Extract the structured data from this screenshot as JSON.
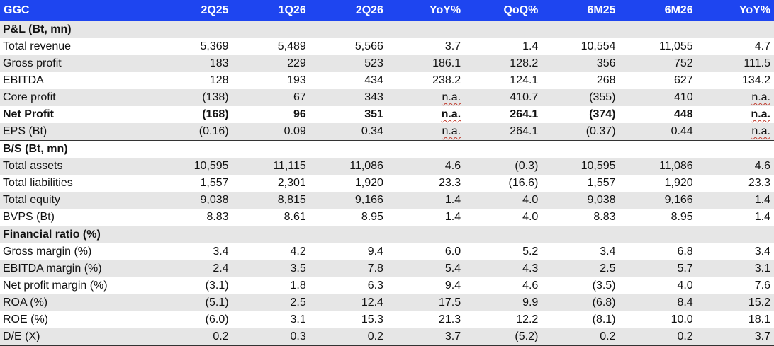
{
  "header": [
    "GGC",
    "2Q25",
    "1Q26",
    "2Q26",
    "YoY%",
    "QoQ%",
    "6M25",
    "6M26",
    "YoY%"
  ],
  "sections": [
    {
      "title": "P&L (Bt, mn)",
      "rows": [
        {
          "label": "Total revenue",
          "values": [
            "5,369",
            "5,489",
            "5,566",
            "3.7",
            "1.4",
            "10,554",
            "11,055",
            "4.7"
          ]
        },
        {
          "label": "Gross profit",
          "values": [
            "183",
            "229",
            "523",
            "186.1",
            "128.2",
            "356",
            "752",
            "111.5"
          ]
        },
        {
          "label": "EBITDA",
          "values": [
            "128",
            "193",
            "434",
            "238.2",
            "124.1",
            "268",
            "627",
            "134.2"
          ]
        },
        {
          "label": "Core profit",
          "values": [
            "(138)",
            "67",
            "343",
            "n.a.",
            "410.7",
            "(355)",
            "410",
            "n.a."
          ]
        },
        {
          "label": "Net Profit",
          "bold": true,
          "values": [
            "(168)",
            "96",
            "351",
            "n.a.",
            "264.1",
            "(374)",
            "448",
            "n.a."
          ]
        },
        {
          "label": "EPS (Bt)",
          "values": [
            "(0.16)",
            "0.09",
            "0.34",
            "n.a.",
            "264.1",
            "(0.37)",
            "0.44",
            "n.a."
          ]
        }
      ]
    },
    {
      "title": "B/S (Bt, mn)",
      "rows": [
        {
          "label": "Total assets",
          "values": [
            "10,595",
            "11,115",
            "11,086",
            "4.6",
            "(0.3)",
            "10,595",
            "11,086",
            "4.6"
          ]
        },
        {
          "label": "Total liabilities",
          "values": [
            "1,557",
            "2,301",
            "1,920",
            "23.3",
            "(16.6)",
            "1,557",
            "1,920",
            "23.3"
          ]
        },
        {
          "label": "Total equity",
          "values": [
            "9,038",
            "8,815",
            "9,166",
            "1.4",
            "4.0",
            "9,038",
            "9,166",
            "1.4"
          ]
        },
        {
          "label": "BVPS (Bt)",
          "values": [
            "8.83",
            "8.61",
            "8.95",
            "1.4",
            "4.0",
            "8.83",
            "8.95",
            "1.4"
          ]
        }
      ]
    },
    {
      "title": "Financial ratio (%)",
      "rows": [
        {
          "label": "Gross margin (%)",
          "values": [
            "3.4",
            "4.2",
            "9.4",
            "6.0",
            "5.2",
            "3.4",
            "6.8",
            "3.4"
          ]
        },
        {
          "label": "EBITDA margin (%)",
          "values": [
            "2.4",
            "3.5",
            "7.8",
            "5.4",
            "4.3",
            "2.5",
            "5.7",
            "3.1"
          ]
        },
        {
          "label": "Net profit margin (%)",
          "values": [
            "(3.1)",
            "1.8",
            "6.3",
            "9.4",
            "4.6",
            "(3.5)",
            "4.0",
            "7.6"
          ]
        },
        {
          "label": "ROA (%)",
          "values": [
            "(5.1)",
            "2.5",
            "12.4",
            "17.5",
            "9.9",
            "(6.8)",
            "8.4",
            "15.2"
          ]
        },
        {
          "label": "ROE (%)",
          "values": [
            "(6.0)",
            "3.1",
            "15.3",
            "21.3",
            "12.2",
            "(8.1)",
            "10.0",
            "18.1"
          ]
        },
        {
          "label": "D/E (X)",
          "values": [
            "0.2",
            "0.3",
            "0.2",
            "3.7",
            "(5.2)",
            "0.2",
            "0.2",
            "3.7"
          ]
        }
      ]
    }
  ]
}
